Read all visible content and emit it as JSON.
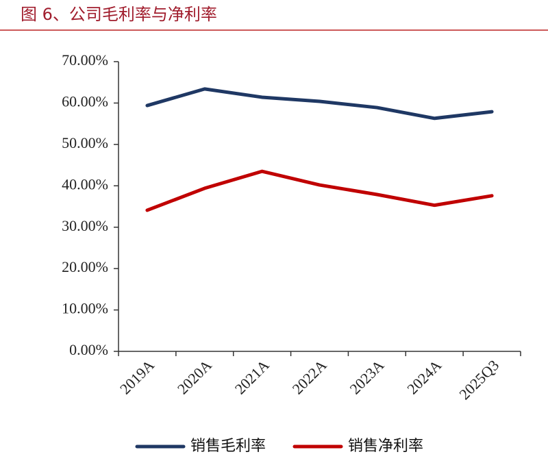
{
  "chart_data": {
    "type": "line",
    "title": "图 6、公司毛利率与净利率",
    "categories": [
      "2019A",
      "2020A",
      "2021A",
      "2022A",
      "2023A",
      "2024A",
      "2025Q3"
    ],
    "series": [
      {
        "name": "销售毛利率",
        "color": "#1f3864",
        "values": [
          59.4,
          63.4,
          61.4,
          60.4,
          58.9,
          56.3,
          57.9
        ]
      },
      {
        "name": "销售净利率",
        "color": "#c00000",
        "values": [
          34.1,
          39.4,
          43.5,
          40.2,
          37.9,
          35.3,
          37.6
        ]
      }
    ],
    "ylim": [
      0,
      70
    ],
    "yticks": [
      {
        "value": 0,
        "label": "0.00%"
      },
      {
        "value": 10,
        "label": "10.00%"
      },
      {
        "value": 20,
        "label": "20.00%"
      },
      {
        "value": 30,
        "label": "30.00%"
      },
      {
        "value": 40,
        "label": "40.00%"
      },
      {
        "value": 50,
        "label": "50.00%"
      },
      {
        "value": 60,
        "label": "60.00%"
      },
      {
        "value": 70,
        "label": "70.00%"
      }
    ],
    "grid": false
  }
}
